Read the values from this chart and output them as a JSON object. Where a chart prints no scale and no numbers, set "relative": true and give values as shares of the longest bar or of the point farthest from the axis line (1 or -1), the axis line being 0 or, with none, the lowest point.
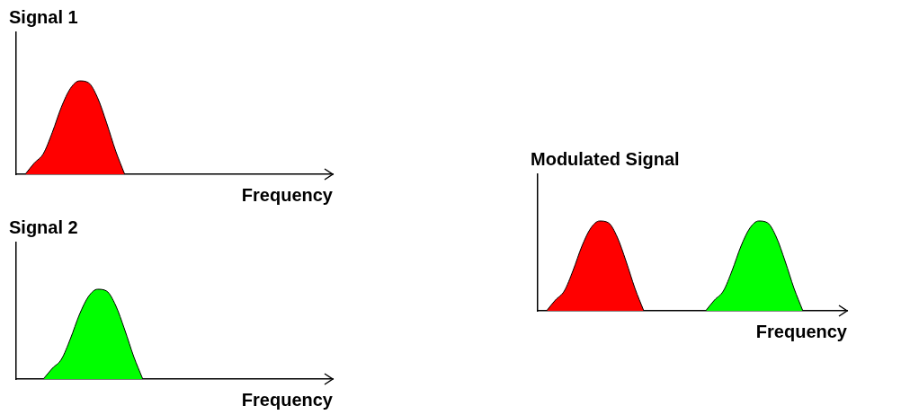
{
  "chart_data": [
    {
      "type": "area",
      "title": "Signal 1",
      "xlabel": "Frequency",
      "relative": true,
      "categories": [
        null,
        null,
        null,
        null,
        null,
        null,
        null,
        null,
        null,
        null,
        null,
        null,
        null,
        null,
        null,
        null,
        null,
        null,
        null,
        null,
        null,
        null,
        null,
        null,
        null,
        null,
        null,
        null,
        null,
        null,
        null,
        null,
        null,
        null,
        null,
        null
      ],
      "series": [
        {
          "color": "#ff0000",
          "values": [
            null,
            0,
            0.12,
            0.22,
            0.45,
            0.72,
            0.92,
            1,
            0.98,
            0.82,
            0.55,
            0.25,
            0,
            null,
            null,
            null,
            null,
            null,
            null,
            null,
            null,
            null,
            null,
            null,
            null,
            null,
            null,
            null,
            null,
            null,
            null,
            null,
            null,
            null,
            null,
            null
          ]
        }
      ]
    },
    {
      "type": "area",
      "title": "Signal 2",
      "xlabel": "Frequency",
      "relative": true,
      "categories": [
        null,
        null,
        null,
        null,
        null,
        null,
        null,
        null,
        null,
        null,
        null,
        null,
        null,
        null,
        null,
        null,
        null,
        null,
        null,
        null,
        null,
        null,
        null,
        null,
        null,
        null,
        null,
        null,
        null,
        null,
        null,
        null,
        null,
        null,
        null,
        null
      ],
      "series": [
        {
          "color": "#00ff00",
          "values": [
            null,
            null,
            null,
            0,
            0.12,
            0.22,
            0.45,
            0.72,
            0.92,
            1,
            0.98,
            0.82,
            0.55,
            0.25,
            0,
            null,
            null,
            null,
            null,
            null,
            null,
            null,
            null,
            null,
            null,
            null,
            null,
            null,
            null,
            null,
            null,
            null,
            null,
            null,
            null,
            null
          ]
        }
      ]
    },
    {
      "type": "area",
      "title": "Modulated Signal",
      "xlabel": "Frequency",
      "relative": true,
      "categories": [
        null,
        null,
        null,
        null,
        null,
        null,
        null,
        null,
        null,
        null,
        null,
        null,
        null,
        null,
        null,
        null,
        null,
        null,
        null,
        null,
        null,
        null,
        null,
        null,
        null,
        null,
        null,
        null,
        null,
        null,
        null,
        null,
        null,
        null,
        null,
        null
      ],
      "series": [
        {
          "color": "#ff0000",
          "values": [
            null,
            0,
            0.12,
            0.22,
            0.45,
            0.72,
            0.92,
            1,
            0.98,
            0.82,
            0.55,
            0.25,
            0,
            null,
            null,
            null,
            null,
            null,
            null,
            null,
            null,
            null,
            null,
            null,
            null,
            null,
            null,
            null,
            null,
            null,
            null,
            null,
            null,
            null,
            null,
            null
          ]
        },
        {
          "color": "#00ff00",
          "values": [
            null,
            null,
            null,
            null,
            null,
            null,
            null,
            null,
            null,
            null,
            null,
            null,
            null,
            null,
            null,
            null,
            null,
            null,
            null,
            0,
            0.12,
            0.22,
            0.45,
            0.72,
            0.92,
            1,
            0.98,
            0.82,
            0.55,
            0.25,
            0,
            null,
            null,
            null,
            null,
            null
          ]
        }
      ]
    }
  ]
}
